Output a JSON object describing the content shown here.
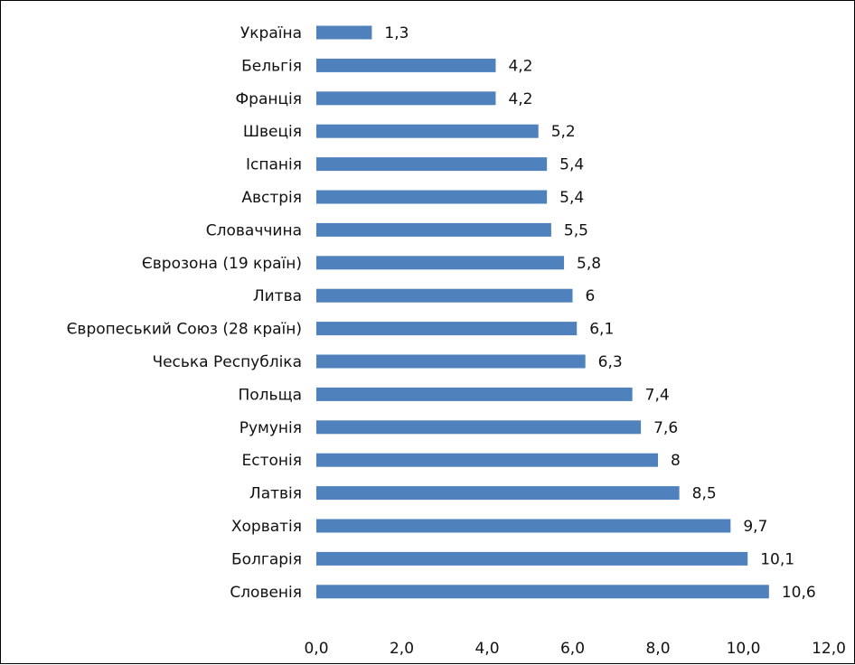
{
  "chart_data": {
    "type": "bar",
    "orientation": "horizontal",
    "categories": [
      "Україна",
      "Бельгія",
      "Франція",
      "Швеція",
      "Іспанія",
      "Австрія",
      "Словаччина",
      "Єврозона (19 країн)",
      "Литва",
      "Європеський Союз (28 країн)",
      "Чеська Республіка",
      "Польща",
      "Румунія",
      "Естонія",
      "Латвія",
      "Хорватія",
      "Болгарія",
      "Словенія"
    ],
    "values": [
      1.3,
      4.2,
      4.2,
      5.2,
      5.4,
      5.4,
      5.5,
      5.8,
      6,
      6.1,
      6.3,
      7.4,
      7.6,
      8,
      8.5,
      9.7,
      10.1,
      10.6
    ],
    "data_labels": [
      "1,3",
      "4,2",
      "4,2",
      "5,2",
      "5,4",
      "5,4",
      "5,5",
      "5,8",
      "6",
      "6,1",
      "6,3",
      "7,4",
      "7,6",
      "8",
      "8,5",
      "9,7",
      "10,1",
      "10,6"
    ],
    "x_ticks": [
      "0,0",
      "2,0",
      "4,0",
      "6,0",
      "8,0",
      "10,0",
      "12,0"
    ],
    "xlim": [
      0,
      12
    ],
    "title": "",
    "xlabel": "",
    "ylabel": "",
    "grid": false,
    "legend": "none",
    "bar_color": "#4F81BD"
  }
}
